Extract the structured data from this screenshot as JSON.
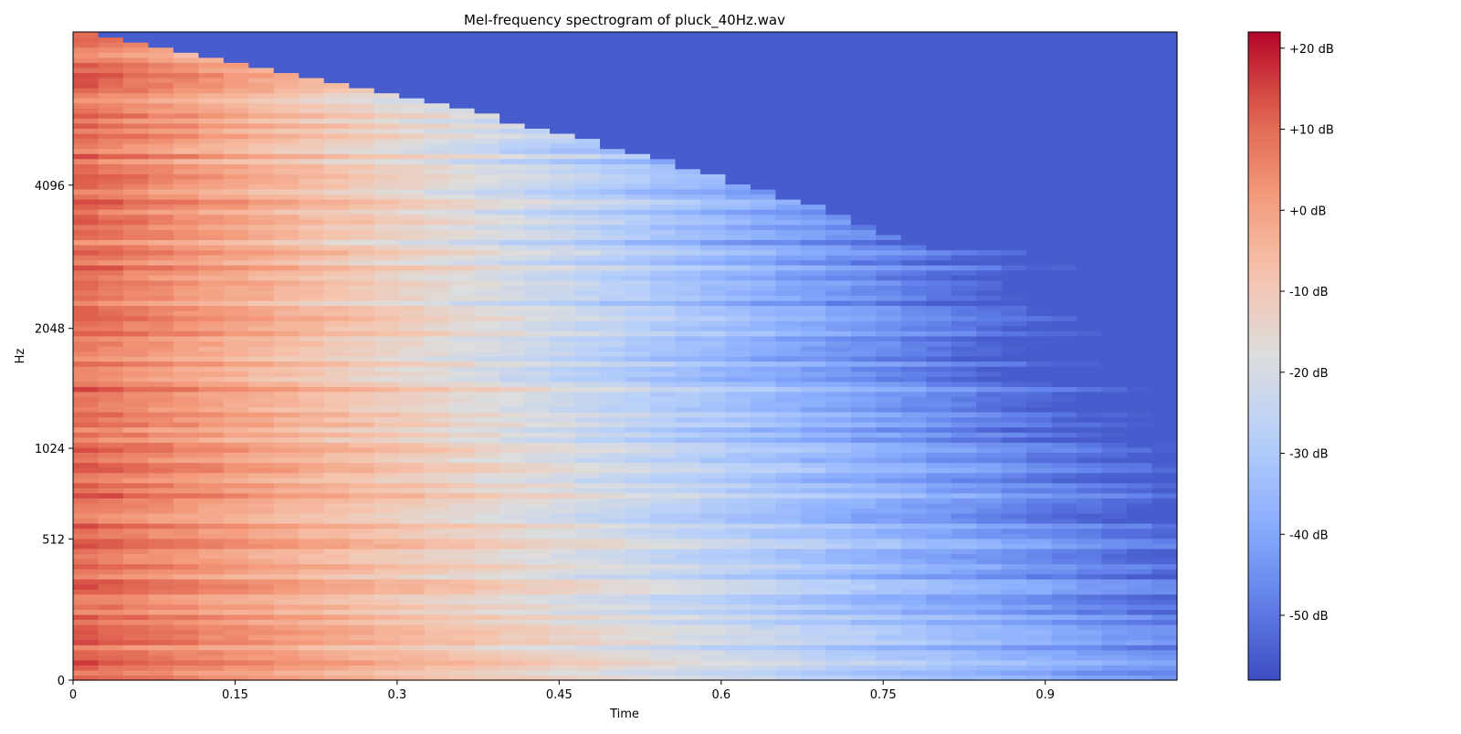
{
  "chart_data": {
    "type": "heatmap",
    "title": "Mel-frequency spectrogram of pluck_40Hz.wav",
    "xlabel": "Time",
    "ylabel": "Hz",
    "x_ticks": [
      "0",
      "0.15",
      "0.3",
      "0.45",
      "0.6",
      "0.75",
      "0.9"
    ],
    "x_tick_values": [
      0,
      0.15,
      0.3,
      0.45,
      0.6,
      0.75,
      0.9
    ],
    "y_ticks": [
      "0",
      "512",
      "1024",
      "2048",
      "4096"
    ],
    "y_tick_values": [
      0,
      512,
      1024,
      2048,
      4096
    ],
    "y_scale": "mel",
    "xlim": [
      0,
      1.022
    ],
    "ylim": [
      0,
      8000
    ],
    "colorbar": {
      "label_suffix": " dB",
      "ticks": [
        "+20 dB",
        "+10 dB",
        "+0 dB",
        "-10 dB",
        "-20 dB",
        "-30 dB",
        "-40 dB",
        "-50 dB"
      ],
      "tick_values": [
        20,
        10,
        0,
        -10,
        -20,
        -30,
        -40,
        -50
      ],
      "vmin": -58,
      "vmax": 22,
      "colormap": "coolwarm"
    },
    "grid": false,
    "z_description_db": {
      "onset_level": 10,
      "decay_db_per_second": 55,
      "cutoff_frequency_hz_start": 8000,
      "cutoff_frequency_hz_end": 3000,
      "floor_db": -55
    }
  }
}
